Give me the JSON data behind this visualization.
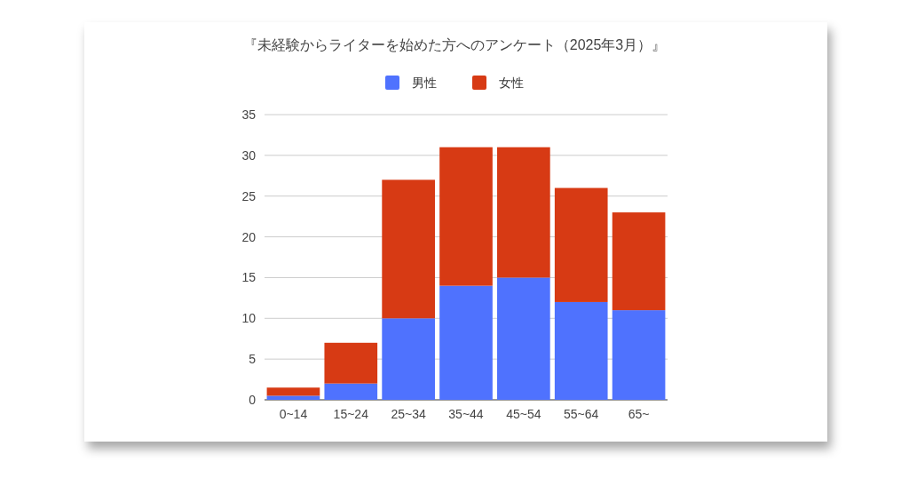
{
  "chart_data": {
    "type": "bar",
    "title": "『未経験からライターを始めた方へのアンケート（2025年3月）』",
    "categories": [
      "0~14",
      "15~24",
      "25~34",
      "35~44",
      "45~54",
      "55~64",
      "65~"
    ],
    "stacked": true,
    "series": [
      {
        "name": "男性",
        "color": "#4f72fe",
        "values": [
          0.5,
          2,
          10,
          14,
          15,
          12,
          11
        ]
      },
      {
        "name": "女性",
        "color": "#d73a14",
        "values": [
          1,
          5,
          17,
          17,
          16,
          14,
          12
        ]
      }
    ],
    "ylim": [
      0,
      35
    ],
    "yticks": [
      0,
      5,
      10,
      15,
      20,
      25,
      30,
      35
    ],
    "grid": "y",
    "legend": "top"
  }
}
